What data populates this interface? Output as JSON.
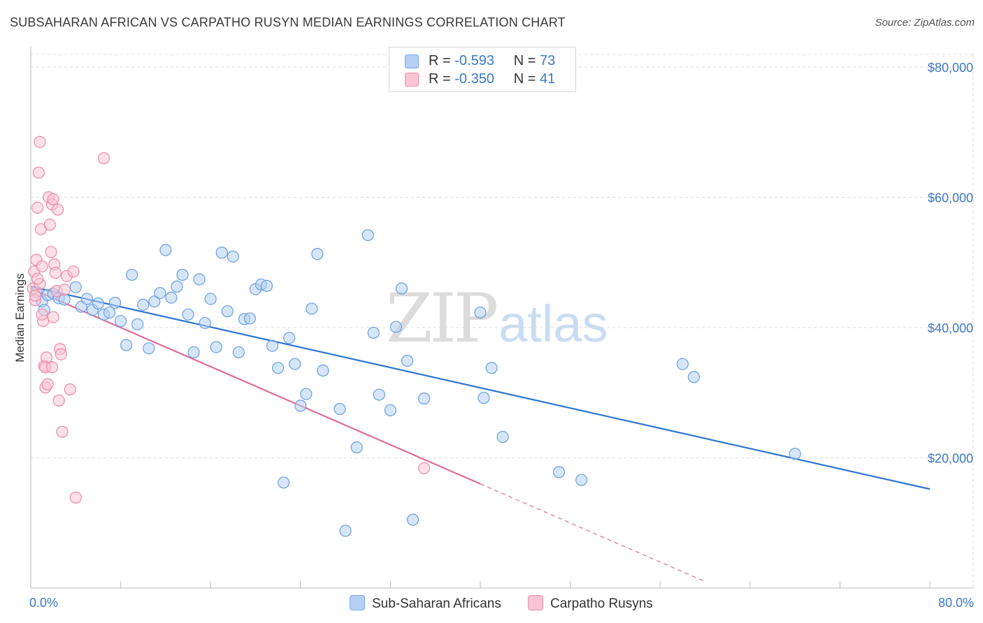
{
  "title": "SUBSAHARAN AFRICAN VS CARPATHO RUSYN MEDIAN EARNINGS CORRELATION CHART",
  "source": "Source: ZipAtlas.com",
  "watermark": {
    "zip": "ZIP",
    "atlas": "atlas"
  },
  "legend": {
    "r_label": "R =",
    "n_label": "N =",
    "rows": [
      {
        "r": "-0.593",
        "n": "73",
        "color": "#b5d0f2",
        "border": "#7aaae6"
      },
      {
        "r": "-0.350",
        "n": "41",
        "color": "#f9c4d4",
        "border": "#ef8fac"
      }
    ]
  },
  "bottom_legend": [
    {
      "label": "Sub-Saharan Africans",
      "color": "#b5d0f2",
      "border": "#7aaae6"
    },
    {
      "label": "Carpatho Rusyns",
      "color": "#f9c4d4",
      "border": "#ef8fac"
    }
  ],
  "colors": {
    "blue_line": "#2f74d0",
    "pink_line": "#e06b97",
    "blue_fill": "rgba(181,208,242,0.55)",
    "blue_stroke": "#6a9fe0",
    "pink_fill": "rgba(249,196,212,0.55)",
    "pink_stroke": "#ec8aa8",
    "grid": "#dcdcdc",
    "label": "#3c78c8"
  },
  "chart_data": {
    "type": "scatter",
    "xlabel": "",
    "ylabel": "Median Earnings",
    "xlim": [
      0,
      80
    ],
    "ylim": [
      0,
      83000
    ],
    "x_tick_labels": [
      "0.0%",
      "80.0%"
    ],
    "y_ticks": [
      20000,
      40000,
      60000,
      80000
    ],
    "y_tick_labels": [
      "$20,000",
      "$40,000",
      "$60,000",
      "$80,000"
    ],
    "grid": true,
    "series": [
      {
        "name": "Sub-Saharan Africans",
        "trend": {
          "x": [
            0,
            80
          ],
          "y": [
            46300,
            15200
          ],
          "dashed_to": null
        },
        "points": [
          [
            0.5,
            45500
          ],
          [
            1,
            44000
          ],
          [
            1.5,
            45000
          ],
          [
            2,
            45200
          ],
          [
            2.5,
            44500
          ],
          [
            3,
            44300
          ],
          [
            4,
            46200
          ],
          [
            4.5,
            43200
          ],
          [
            5,
            44400
          ],
          [
            5.5,
            42700
          ],
          [
            6,
            43700
          ],
          [
            6.5,
            42000
          ],
          [
            7,
            42300
          ],
          [
            7.5,
            43800
          ],
          [
            8,
            41000
          ],
          [
            8.5,
            37300
          ],
          [
            9,
            48100
          ],
          [
            9.5,
            40500
          ],
          [
            10,
            43500
          ],
          [
            10.5,
            36800
          ],
          [
            11,
            44000
          ],
          [
            11.5,
            45300
          ],
          [
            12,
            51900
          ],
          [
            12.5,
            44600
          ],
          [
            13,
            46300
          ],
          [
            13.5,
            48100
          ],
          [
            14,
            42000
          ],
          [
            14.5,
            36200
          ],
          [
            15,
            47400
          ],
          [
            15.5,
            40700
          ],
          [
            16,
            44400
          ],
          [
            16.5,
            37000
          ],
          [
            17,
            51500
          ],
          [
            17.5,
            42500
          ],
          [
            18,
            50900
          ],
          [
            18.5,
            36200
          ],
          [
            19,
            41300
          ],
          [
            19.5,
            41400
          ],
          [
            20,
            45900
          ],
          [
            20.5,
            46600
          ],
          [
            21,
            46400
          ],
          [
            21.5,
            37200
          ],
          [
            22,
            33800
          ],
          [
            22.5,
            16200
          ],
          [
            23,
            38400
          ],
          [
            23.5,
            34400
          ],
          [
            24,
            28000
          ],
          [
            24.5,
            29800
          ],
          [
            25,
            42900
          ],
          [
            25.5,
            51300
          ],
          [
            26,
            33400
          ],
          [
            27.5,
            27500
          ],
          [
            28,
            8800
          ],
          [
            29,
            21600
          ],
          [
            30,
            54200
          ],
          [
            30.5,
            39200
          ],
          [
            31,
            29700
          ],
          [
            32,
            27300
          ],
          [
            32.5,
            40100
          ],
          [
            33,
            46000
          ],
          [
            33.5,
            34900
          ],
          [
            34,
            10500
          ],
          [
            35,
            29100
          ],
          [
            40,
            42300
          ],
          [
            40.3,
            29200
          ],
          [
            41,
            33800
          ],
          [
            42,
            23200
          ],
          [
            47,
            17800
          ],
          [
            49,
            16600
          ],
          [
            58,
            34400
          ],
          [
            59,
            32400
          ],
          [
            68,
            20600
          ],
          [
            1.2,
            42700
          ]
        ]
      },
      {
        "name": "Carpatho Rusyns",
        "trend": {
          "x": [
            0,
            40
          ],
          "y": [
            46000,
            16000
          ],
          "dashed_to": {
            "x": 60,
            "y": 1000
          }
        },
        "points": [
          [
            0.2,
            46000
          ],
          [
            0.3,
            48600
          ],
          [
            0.4,
            44200
          ],
          [
            0.5,
            50400
          ],
          [
            0.6,
            58400
          ],
          [
            0.7,
            63800
          ],
          [
            0.8,
            68500
          ],
          [
            0.9,
            55100
          ],
          [
            1,
            49400
          ],
          [
            1.1,
            41000
          ],
          [
            1.2,
            34100
          ],
          [
            1.3,
            30800
          ],
          [
            1.4,
            35400
          ],
          [
            1.5,
            31300
          ],
          [
            1.6,
            60000
          ],
          [
            1.7,
            55800
          ],
          [
            1.8,
            51600
          ],
          [
            1.9,
            58900
          ],
          [
            2,
            41600
          ],
          [
            2.1,
            49700
          ],
          [
            2.2,
            48400
          ],
          [
            2.3,
            45600
          ],
          [
            2.4,
            58100
          ],
          [
            2.5,
            28800
          ],
          [
            2.6,
            36700
          ],
          [
            2.7,
            35900
          ],
          [
            2.8,
            24000
          ],
          [
            3,
            45800
          ],
          [
            3.2,
            47900
          ],
          [
            3.5,
            30500
          ],
          [
            3.8,
            48600
          ],
          [
            4,
            13900
          ],
          [
            6.5,
            66000
          ],
          [
            35,
            18400
          ],
          [
            0.8,
            46700
          ],
          [
            1,
            42000
          ],
          [
            1.3,
            33900
          ],
          [
            2,
            59700
          ],
          [
            0.6,
            47500
          ],
          [
            0.4,
            44900
          ],
          [
            1.9,
            33900
          ]
        ]
      }
    ]
  }
}
